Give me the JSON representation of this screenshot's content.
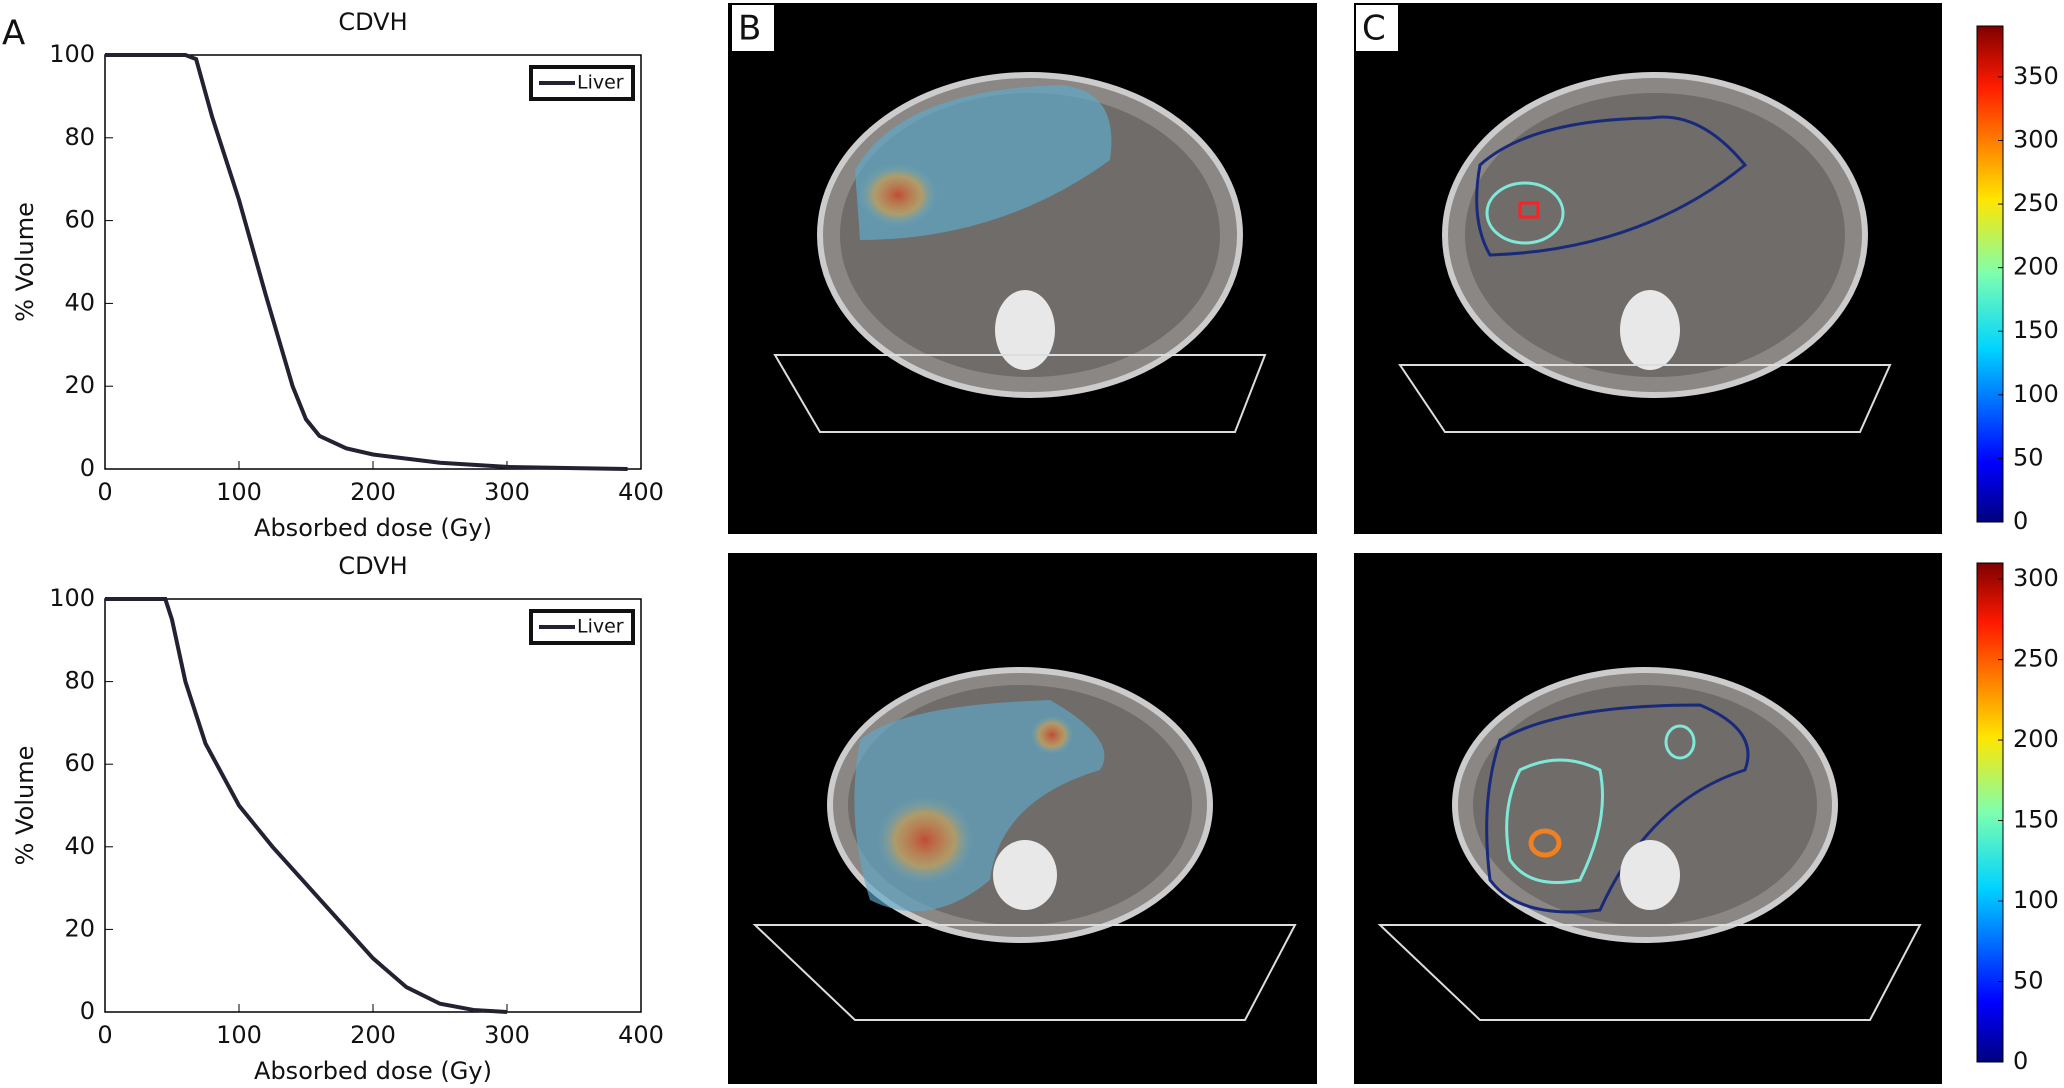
{
  "panel_labels": [
    "A",
    "B",
    "C"
  ],
  "chart_data": [
    {
      "type": "line",
      "title": "CDVH",
      "x_label": "Absorbed dose (Gy)",
      "y_label": "% Volume",
      "x": [
        0,
        60,
        68,
        80,
        100,
        120,
        140,
        150,
        160,
        180,
        200,
        250,
        300,
        350,
        390
      ],
      "series": [
        {
          "name": "Liver",
          "color": "#222233",
          "values": [
            100,
            100,
            99,
            85,
            65,
            42,
            20,
            12,
            8,
            5,
            3.5,
            1.5,
            0.5,
            0.2,
            0
          ]
        }
      ],
      "xlim": [
        0,
        400
      ],
      "xticks": [
        0,
        100,
        200,
        300,
        400
      ],
      "ylim": [
        0,
        100
      ],
      "yticks": [
        0,
        20,
        40,
        60,
        80,
        100
      ],
      "legend": "upper right"
    },
    {
      "type": "line",
      "title": "CDVH",
      "x_label": "Absorbed dose (Gy)",
      "y_label": "% Volume",
      "x": [
        0,
        45,
        50,
        60,
        75,
        100,
        125,
        150,
        175,
        200,
        225,
        250,
        275,
        300
      ],
      "series": [
        {
          "name": "Liver",
          "color": "#222233",
          "values": [
            100,
            100,
            95,
            80,
            65,
            50,
            40,
            31,
            22,
            13,
            6,
            2,
            0.5,
            0
          ]
        }
      ],
      "xlim": [
        0,
        400
      ],
      "xticks": [
        0,
        100,
        200,
        300,
        400
      ],
      "ylim": [
        0,
        100
      ],
      "yticks": [
        0,
        20,
        40,
        60,
        80,
        100
      ],
      "legend": "upper right"
    },
    {
      "type": "colorbar",
      "ylim": [
        0,
        390
      ],
      "yticks": [
        0,
        50,
        100,
        150,
        200,
        250,
        300,
        350
      ]
    },
    {
      "type": "colorbar",
      "ylim": [
        0,
        310
      ],
      "yticks": [
        0,
        50,
        100,
        150,
        200,
        250,
        300
      ]
    }
  ]
}
